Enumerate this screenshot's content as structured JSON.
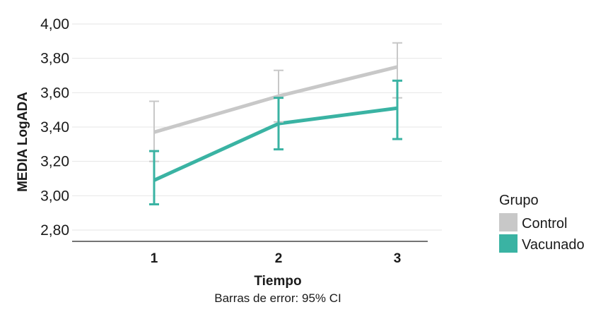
{
  "chart_data": {
    "type": "line",
    "xlabel": "Tiempo",
    "ylabel": "MEDIA LogADA",
    "note": "Barras de error: 95% CI",
    "categories": [
      "1",
      "2",
      "3"
    ],
    "ylim": [
      2.8,
      4.0
    ],
    "yticks": [
      "2,80",
      "3,00",
      "3,20",
      "3,40",
      "3,60",
      "3,80",
      "4,00"
    ],
    "grid": true,
    "legend_placement": "right",
    "legend_title": "Grupo",
    "series": [
      {
        "name": "Control",
        "color": "#c8c8c8",
        "values": [
          3.37,
          3.58,
          3.75
        ],
        "ci_low": [
          3.2,
          3.43,
          3.57
        ],
        "ci_high": [
          3.55,
          3.73,
          3.89
        ]
      },
      {
        "name": "Vacunado",
        "color": "#3ab3a3",
        "values": [
          3.09,
          3.42,
          3.51
        ],
        "ci_low": [
          2.95,
          3.27,
          3.33
        ],
        "ci_high": [
          3.26,
          3.57,
          3.67
        ]
      }
    ]
  }
}
